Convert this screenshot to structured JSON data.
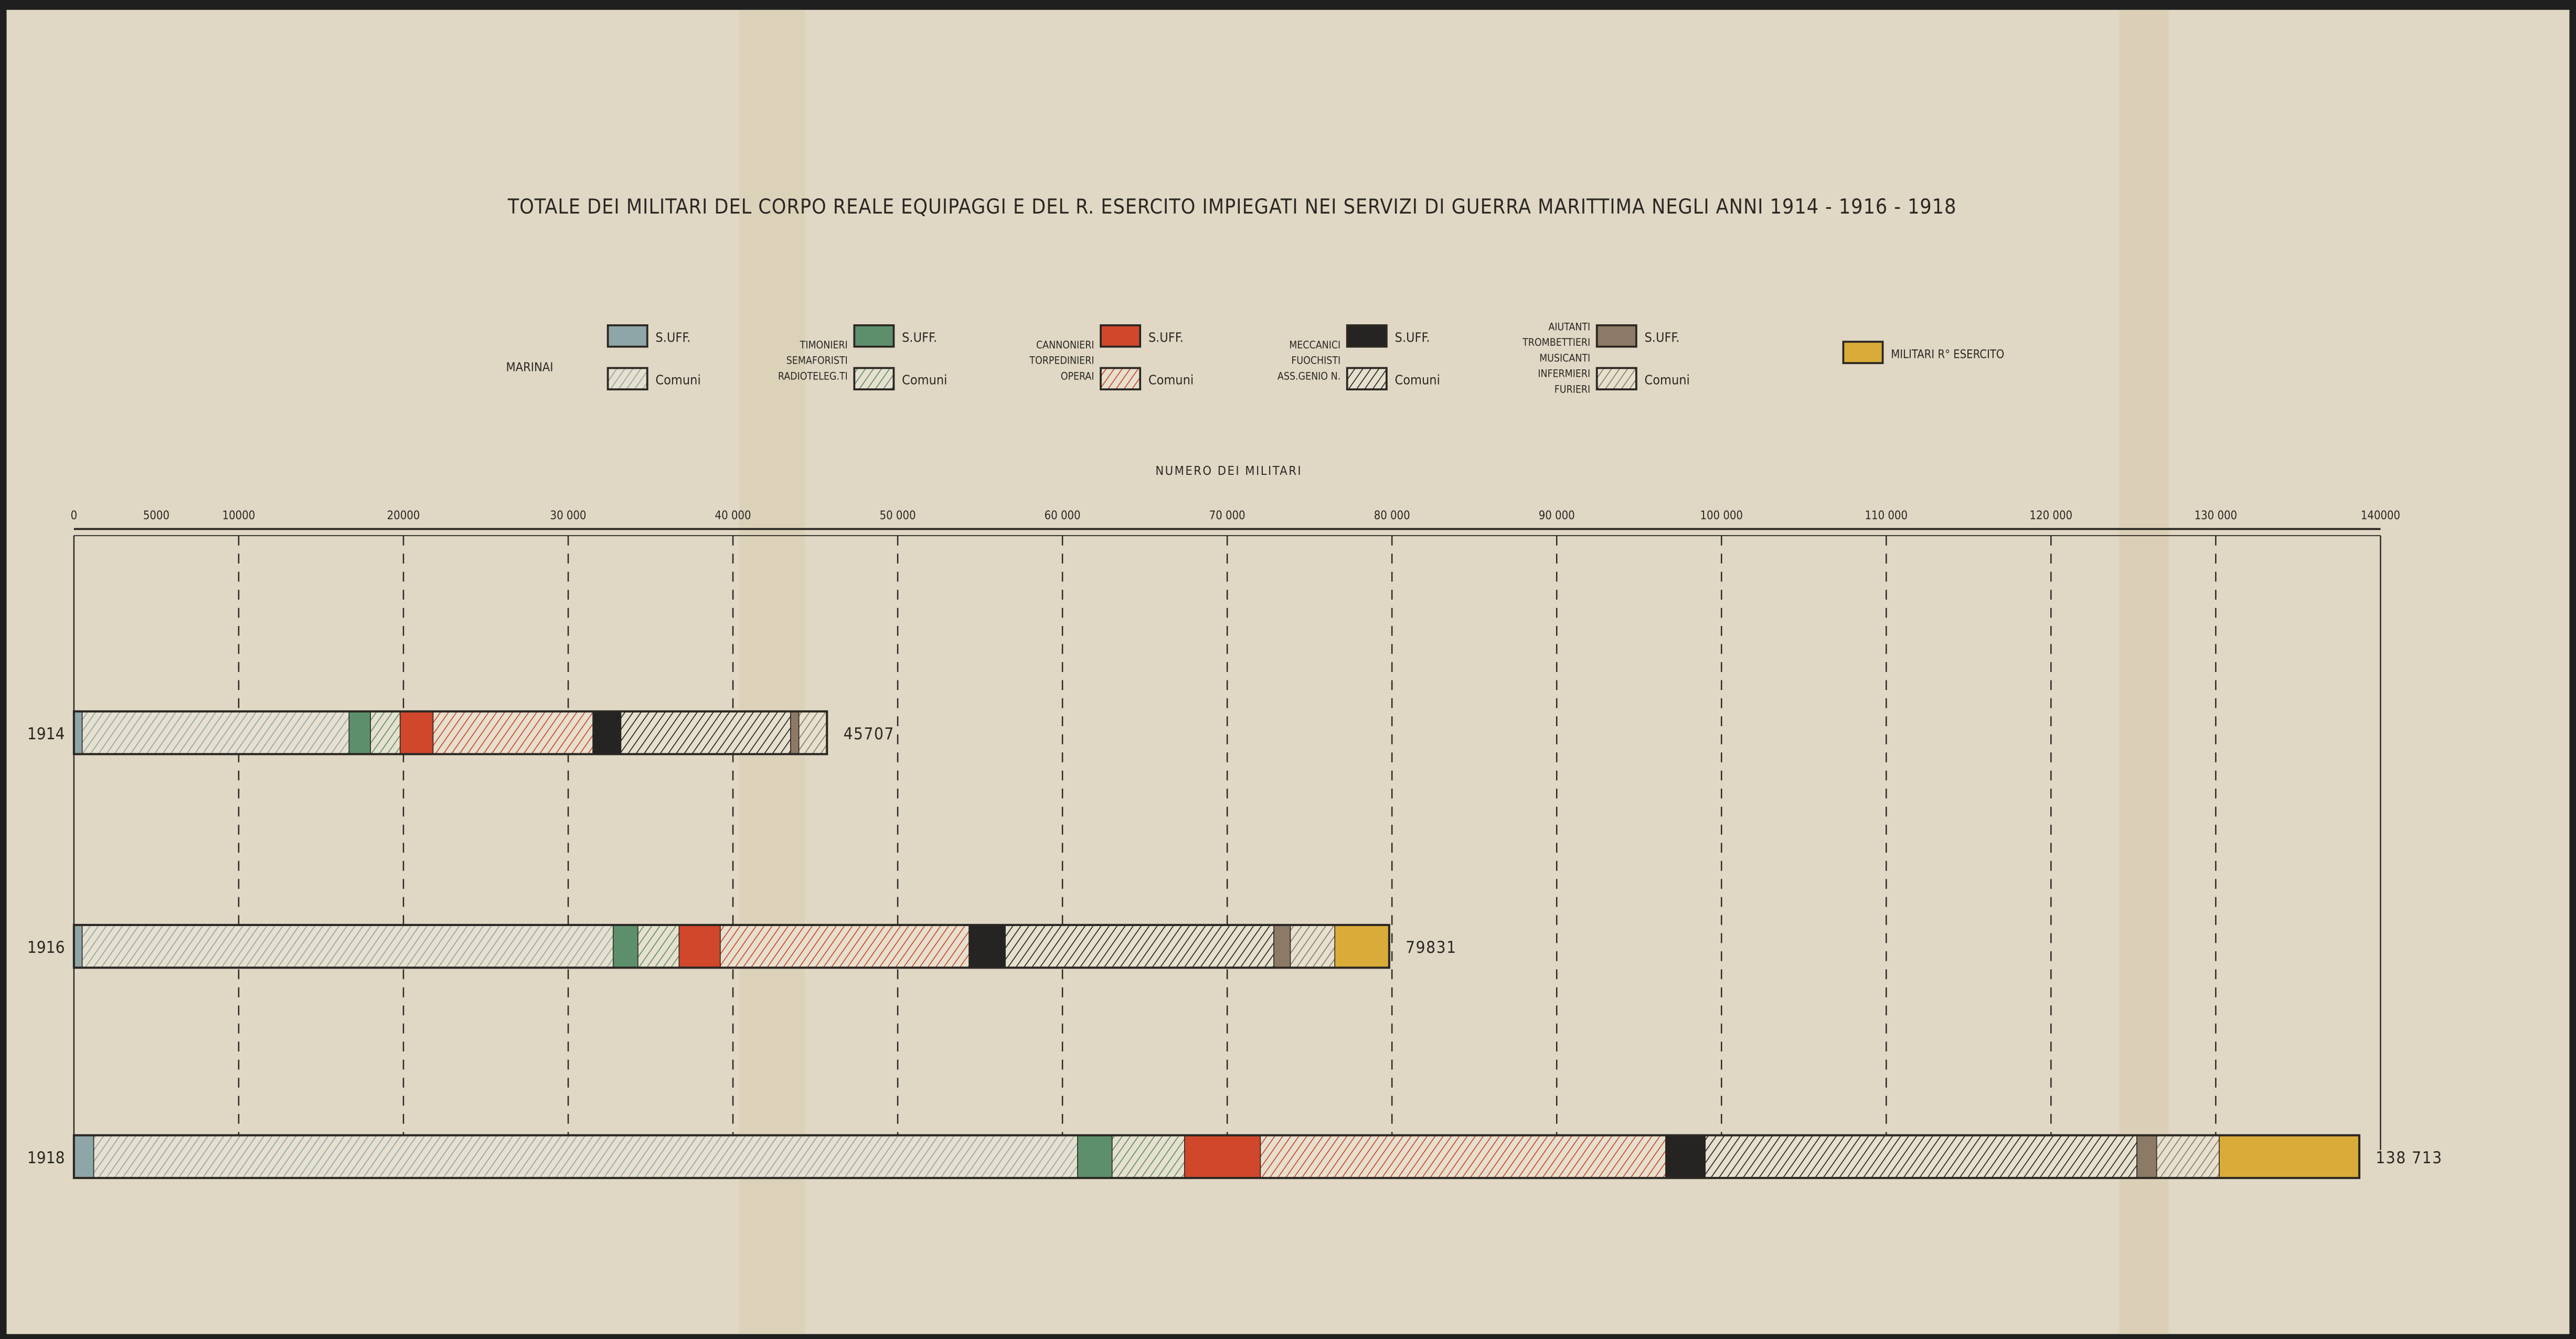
{
  "chart_data": {
    "type": "bar",
    "orientation": "horizontal-stacked",
    "title": "TOTALE DEI MILITARI DEL CORPO REALE EQUIPAGGI E DEL R. ESERCITO IMPIEGATI NEI SERVIZI DI GUERRA MARITTIMA NEGLI ANNI 1914 - 1916 - 1918",
    "xlabel": "NUMERO DEI MILITARI",
    "xlim": [
      0,
      140000
    ],
    "grid": true,
    "xticks": [
      {
        "value": 0,
        "label": "0"
      },
      {
        "value": 5000,
        "label": "5000"
      },
      {
        "value": 10000,
        "label": "10000"
      },
      {
        "value": 20000,
        "label": "20000"
      },
      {
        "value": 30000,
        "label": "30 000"
      },
      {
        "value": 40000,
        "label": "40 000"
      },
      {
        "value": 50000,
        "label": "50 000"
      },
      {
        "value": 60000,
        "label": "60 000"
      },
      {
        "value": 70000,
        "label": "70 000"
      },
      {
        "value": 80000,
        "label": "80 000"
      },
      {
        "value": 90000,
        "label": "90 000"
      },
      {
        "value": 100000,
        "label": "100 000"
      },
      {
        "value": 110000,
        "label": "110 000"
      },
      {
        "value": 120000,
        "label": "120 000"
      },
      {
        "value": 130000,
        "label": "130 000"
      },
      {
        "value": 140000,
        "label": "140000"
      }
    ],
    "legend_groups": [
      {
        "group": [
          "MARINAI"
        ],
        "items": [
          {
            "label": "S.UFF.",
            "color": "#8fa6a8",
            "hatched": false
          },
          {
            "label": "Comuni",
            "color": "#8fa6a8",
            "hatched": true
          }
        ]
      },
      {
        "group": [
          "TIMONIERI",
          "SEMAFORISTI",
          "RADIOTELEG.TI"
        ],
        "items": [
          {
            "label": "S.UFF.",
            "color": "#5e8f6d",
            "hatched": false
          },
          {
            "label": "Comuni",
            "color": "#5e8f6d",
            "hatched": true
          }
        ]
      },
      {
        "group": [
          "CANNONIERI",
          "TORPEDINIERI",
          "OPERAI"
        ],
        "items": [
          {
            "label": "S.UFF.",
            "color": "#d0472c",
            "hatched": false
          },
          {
            "label": "Comuni",
            "color": "#d0472c",
            "hatched": true
          }
        ]
      },
      {
        "group": [
          "MECCANICI",
          "FUOCHISTI",
          "ASS.GENIO N."
        ],
        "items": [
          {
            "label": "S.UFF.",
            "color": "#262422",
            "hatched": false
          },
          {
            "label": "Comuni",
            "color": "#262422",
            "hatched": true
          }
        ]
      },
      {
        "group": [
          "AIUTANTI",
          "TROMBETTIERI",
          "MUSICANTI",
          "INFERMIERI",
          "FURIERI"
        ],
        "items": [
          {
            "label": "S.UFF.",
            "color": "#8d7a66",
            "hatched": false
          },
          {
            "label": "Comuni",
            "color": "#8d7a66",
            "hatched": true
          }
        ]
      },
      {
        "group": [],
        "items": [
          {
            "label": "MILITARI R° ESERCITO",
            "color": "#d9ac3a",
            "hatched": false
          }
        ]
      }
    ],
    "series_keys": [
      "Marinai S.Uff.",
      "Marinai Comuni",
      "Timonieri S.Uff.",
      "Timonieri Comuni",
      "Cannonieri S.Uff.",
      "Cannonieri Comuni",
      "Meccanici S.Uff.",
      "Meccanici Comuni",
      "Aiutanti S.Uff.",
      "Aiutanti Comuni",
      "Militari R° Esercito"
    ],
    "series_colors": [
      "#8fa6a8",
      "#8fa6a8",
      "#5e8f6d",
      "#5e8f6d",
      "#d0472c",
      "#d0472c",
      "#262422",
      "#262422",
      "#8d7a66",
      "#8d7a66",
      "#d9ac3a"
    ],
    "series_hatched": [
      false,
      true,
      false,
      true,
      false,
      true,
      false,
      true,
      false,
      true,
      false
    ],
    "categories": [
      "1914",
      "1916",
      "1918"
    ],
    "values": [
      [
        500,
        16200,
        1300,
        1800,
        2000,
        9700,
        1700,
        10300,
        500,
        1707,
        0
      ],
      [
        500,
        32231,
        1500,
        2500,
        2500,
        15100,
        2200,
        16300,
        1000,
        2700,
        3300
      ],
      [
        1200,
        59713,
        2100,
        4400,
        4600,
        24600,
        2400,
        26200,
        1200,
        3800,
        8500
      ]
    ],
    "totals": [
      {
        "value": 45707,
        "label": "45707"
      },
      {
        "value": 79831,
        "label": "79831"
      },
      {
        "value": 138713,
        "label": "138 713"
      }
    ]
  }
}
